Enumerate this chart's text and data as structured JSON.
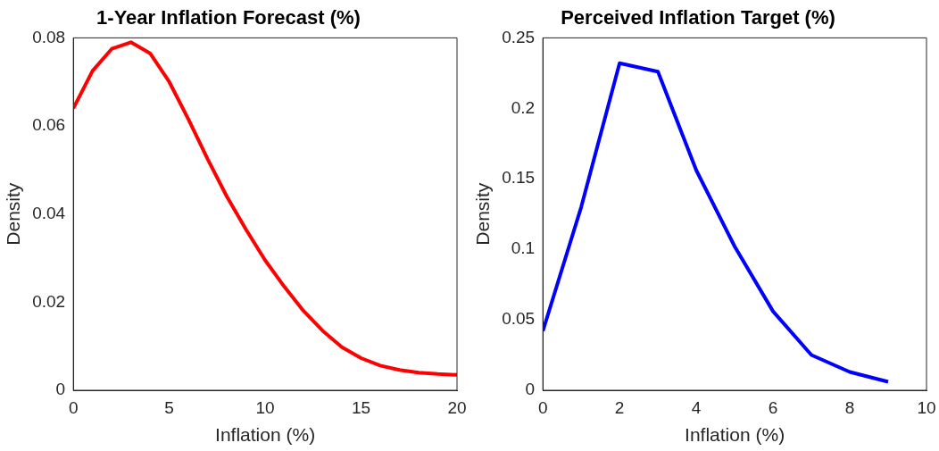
{
  "chart_data": [
    {
      "type": "line",
      "title": "1-Year Inflation Forecast (%)",
      "xlabel": "Inflation (%)",
      "ylabel": "Density",
      "x": [
        0,
        1,
        2,
        3,
        4,
        5,
        6,
        7,
        8,
        9,
        10,
        11,
        12,
        13,
        14,
        15,
        16,
        17,
        18,
        19,
        20
      ],
      "series": [
        {
          "color": "#ff0000",
          "values": [
            0.064,
            0.0725,
            0.0775,
            0.079,
            0.0765,
            0.07,
            0.0615,
            0.0525,
            0.044,
            0.0365,
            0.0295,
            0.0235,
            0.018,
            0.0135,
            0.0098,
            0.0073,
            0.0056,
            0.0046,
            0.004,
            0.0037,
            0.0035
          ]
        }
      ],
      "xlim": [
        0,
        20
      ],
      "xticks": [
        0,
        5,
        10,
        15,
        20
      ],
      "ylim": [
        0,
        0.08
      ],
      "yticks": [
        0,
        0.02,
        0.04,
        0.06,
        0.08
      ],
      "grid": false,
      "legend": false
    },
    {
      "type": "line",
      "title": "Perceived Inflation Target (%)",
      "xlabel": "Inflation (%)",
      "ylabel": "Density",
      "x": [
        0,
        1,
        2,
        3,
        4,
        5,
        6,
        7,
        8,
        9
      ],
      "series": [
        {
          "color": "#0000ff",
          "values": [
            0.042,
            0.13,
            0.232,
            0.226,
            0.156,
            0.102,
            0.056,
            0.025,
            0.013,
            0.006
          ]
        }
      ],
      "xlim": [
        0,
        10
      ],
      "xticks": [
        0,
        2,
        4,
        6,
        8,
        10
      ],
      "ylim": [
        0,
        0.25
      ],
      "yticks": [
        0,
        0.05,
        0.1,
        0.15,
        0.2,
        0.25
      ],
      "grid": false,
      "legend": false
    }
  ]
}
